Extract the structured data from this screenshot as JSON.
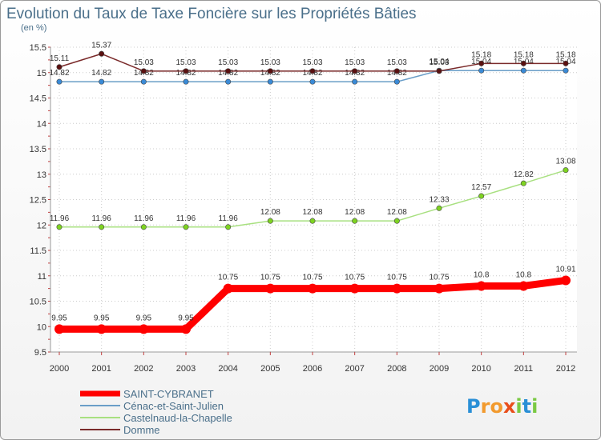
{
  "chart_data": {
    "type": "line",
    "title": "Evolution du Taux de Taxe Foncière sur les Propriétés Bâties",
    "unit_label": "(en %)",
    "xlabel": "",
    "ylabel": "(en %)",
    "x": [
      "2000",
      "2001",
      "2002",
      "2003",
      "2004",
      "2005",
      "2006",
      "2007",
      "2008",
      "2009",
      "2010",
      "2011",
      "2012"
    ],
    "ylim": [
      9.5,
      15.5
    ],
    "yticks": [
      {
        "value": 9.5,
        "label": "9.5"
      },
      {
        "value": 10,
        "label": "10"
      },
      {
        "value": 10.5,
        "label": "10.5"
      },
      {
        "value": 11,
        "label": "11"
      },
      {
        "value": 11.5,
        "label": "11.5"
      },
      {
        "value": 12,
        "label": "12"
      },
      {
        "value": 12.5,
        "label": "12.5"
      },
      {
        "value": 13,
        "label": "13"
      },
      {
        "value": 13.5,
        "label": "13.5"
      },
      {
        "value": 14,
        "label": "14"
      },
      {
        "value": 14.5,
        "label": "14.5"
      },
      {
        "value": 15,
        "label": "15"
      },
      {
        "value": 15.5,
        "label": "15.5"
      }
    ],
    "grid": true,
    "legend_position": "bottom-left",
    "series": [
      {
        "name": "SAINT-CYBRANET",
        "key": "saint-cybranet",
        "color": "#ff0000",
        "marker_color": "#ff0000",
        "emphasis": "bold",
        "values": [
          9.95,
          9.95,
          9.95,
          9.95,
          10.75,
          10.75,
          10.75,
          10.75,
          10.75,
          10.75,
          10.8,
          10.8,
          10.91
        ],
        "labels": [
          "9.95",
          "9.95",
          "9.95",
          "9.95",
          "10.75",
          "10.75",
          "10.75",
          "10.75",
          "10.75",
          "10.75",
          "10.8",
          "10.8",
          "10.91"
        ]
      },
      {
        "name": "Cénac-et-Saint-Julien",
        "key": "cenac",
        "color": "#6a9ec8",
        "marker_color": "#3a8ad6",
        "emphasis": "normal",
        "values": [
          14.82,
          14.82,
          14.82,
          14.82,
          14.82,
          14.82,
          14.82,
          14.82,
          14.82,
          15.04,
          15.04,
          15.04,
          15.04
        ],
        "labels": [
          "14.82",
          "14.82",
          "14.82",
          "14.82",
          "14.82",
          "14.82",
          "14.82",
          "14.82",
          "14.82",
          "15.04",
          "15.04",
          "15.04",
          "15.04"
        ]
      },
      {
        "name": "Castelnaud-la-Chapelle",
        "key": "castelnaud",
        "color": "#a8e080",
        "marker_color": "#7ed321",
        "emphasis": "normal",
        "values": [
          11.96,
          11.96,
          11.96,
          11.96,
          11.96,
          12.08,
          12.08,
          12.08,
          12.08,
          12.33,
          12.57,
          12.82,
          13.08
        ],
        "labels": [
          "11.96",
          "11.96",
          "11.96",
          "11.96",
          "11.96",
          "12.08",
          "12.08",
          "12.08",
          "12.08",
          "12.33",
          "12.57",
          "12.82",
          "13.08"
        ]
      },
      {
        "name": "Domme",
        "key": "domme",
        "color": "#7a2a2a",
        "marker_color": "#5a1010",
        "emphasis": "normal",
        "values": [
          15.11,
          15.37,
          15.03,
          15.03,
          15.03,
          15.03,
          15.03,
          15.03,
          15.03,
          15.03,
          15.18,
          15.18,
          15.18
        ],
        "labels": [
          "15.11",
          "15.37",
          "15.03",
          "15.03",
          "15.03",
          "15.03",
          "15.03",
          "15.03",
          "15.03",
          "15.03",
          "15.18",
          "15.18",
          "15.18"
        ]
      }
    ]
  },
  "brand": {
    "letters": [
      "P",
      "r",
      "o",
      "x",
      "i",
      "t",
      "i"
    ],
    "colors": [
      "#2a8fd6",
      "#f29a2e",
      "#f29a2e",
      "#e94e1b",
      "#7ac943",
      "#2a8fd6",
      "#7ac943"
    ]
  }
}
